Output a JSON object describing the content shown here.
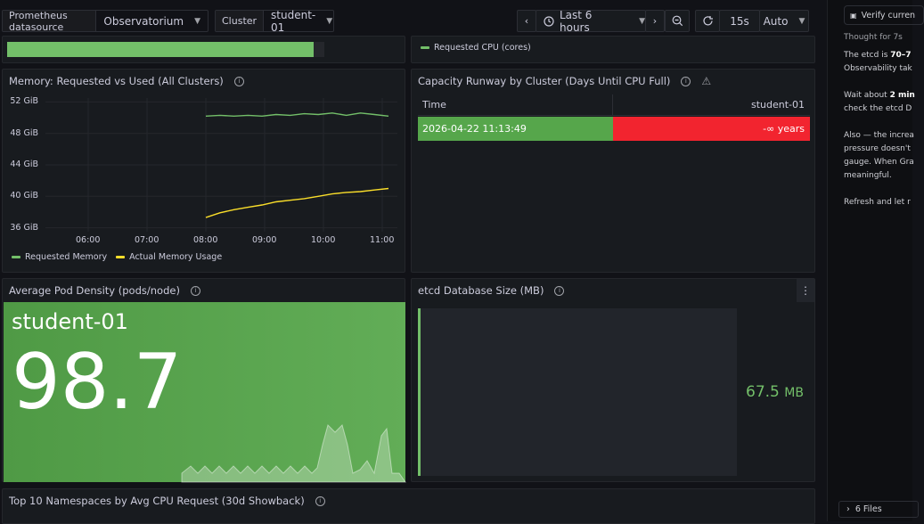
{
  "toolbar": {
    "datasource_label": "Prometheus datasource",
    "datasource_value": "Observatorium",
    "cluster_label": "Cluster",
    "cluster_value": "student-01",
    "time_range": "Last 6 hours",
    "refresh_interval": "15s",
    "refresh_mode": "Auto"
  },
  "top_strip": {
    "legend": "Requested CPU (cores)"
  },
  "memory_panel": {
    "title": "Memory: Requested vs Used (All Clusters)",
    "legend": [
      "Requested Memory",
      "Actual Memory Usage"
    ]
  },
  "runway_panel": {
    "title": "Capacity Runway by Cluster (Days Until CPU Full)",
    "headers": [
      "Time",
      "student-01"
    ],
    "rows": [
      [
        "2026-04-22 11:13:49",
        "-∞ years"
      ]
    ]
  },
  "density_panel": {
    "title": "Average Pod Density (pods/node)",
    "cluster": "student-01",
    "value": "98.7"
  },
  "etcd_panel": {
    "title": "etcd Database Size (MB)",
    "value": "67.5",
    "unit": "MB"
  },
  "namespaces_panel": {
    "title": "Top 10 Namespaces by Avg CPU Request (30d Showback)"
  },
  "right_pane": {
    "verify_button": "Verify curren",
    "thought": "Thought for 7s",
    "lines": [
      {
        "pre": "The etcd is ",
        "bold": "70–7",
        "post": ""
      },
      {
        "pre": "Observability tak",
        "bold": "",
        "post": ""
      },
      {
        "pre": "",
        "bold": "",
        "post": ""
      },
      {
        "pre": "Wait about ",
        "bold": "2 min",
        "post": ""
      },
      {
        "pre": "check the etcd D",
        "bold": "",
        "post": ""
      },
      {
        "pre": "",
        "bold": "",
        "post": ""
      },
      {
        "pre": "Also — the increa",
        "bold": "",
        "post": ""
      },
      {
        "pre": "pressure doesn't",
        "bold": "",
        "post": ""
      },
      {
        "pre": "gauge. When Gra",
        "bold": "",
        "post": ""
      },
      {
        "pre": "meaningful.",
        "bold": "",
        "post": ""
      },
      {
        "pre": "",
        "bold": "",
        "post": ""
      },
      {
        "pre": "Refresh and let r",
        "bold": "",
        "post": ""
      }
    ],
    "files": "6 Files"
  },
  "chart_data": {
    "type": "line",
    "x": [
      "08:00",
      "08:15",
      "08:30",
      "08:45",
      "09:00",
      "09:15",
      "09:30",
      "09:45",
      "10:00",
      "10:15",
      "10:30",
      "10:45",
      "11:00",
      "11:10"
    ],
    "x_ticks": [
      "06:00",
      "07:00",
      "08:00",
      "09:00",
      "10:00",
      "11:00"
    ],
    "y_ticks": [
      "52 GiB",
      "48 GiB",
      "44 GiB",
      "40 GiB",
      "36 GiB"
    ],
    "ylim": [
      35.5,
      52.5
    ],
    "series": [
      {
        "name": "Requested Memory",
        "color": "#73bf69",
        "values": [
          50.2,
          50.3,
          50.2,
          50.3,
          50.2,
          50.4,
          50.3,
          50.5,
          50.4,
          50.6,
          50.3,
          50.6,
          50.4,
          50.2
        ]
      },
      {
        "name": "Actual Memory Usage",
        "color": "#fade2a",
        "values": [
          37.3,
          37.9,
          38.3,
          38.6,
          38.9,
          39.3,
          39.5,
          39.7,
          40.0,
          40.3,
          40.5,
          40.6,
          40.8,
          41.0
        ]
      }
    ]
  },
  "etcd_gauge": {
    "fraction": 0.0
  },
  "colors": {
    "green": "#73bf69",
    "red": "#f2242f",
    "yellow": "#fade2a"
  }
}
